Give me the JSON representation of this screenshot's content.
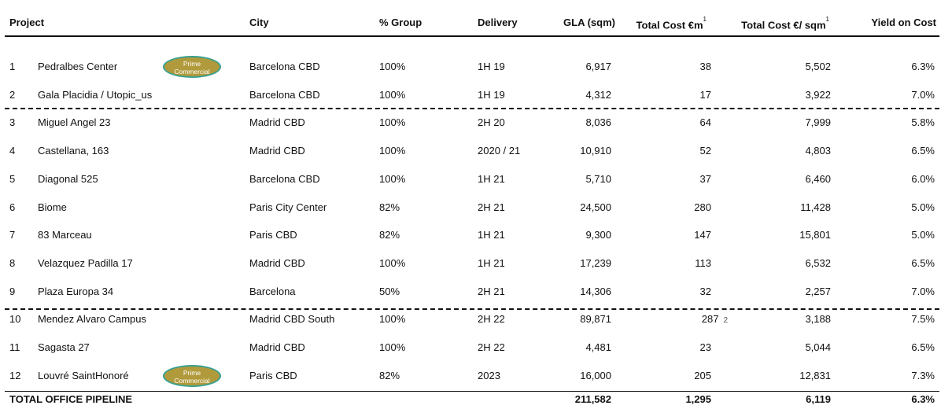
{
  "table": {
    "header": [
      "Project",
      "City",
      "% Group",
      "Delivery",
      "GLA (sqm)",
      "Total Cost €m",
      "Total Cost €/ sqm",
      "Yield on Cost"
    ],
    "header_notes": {
      "5": "1",
      "6": "1"
    },
    "rows": [
      {
        "cells": [
          "1",
          "Pedralbes Center",
          "Barcelona CBD",
          "100%",
          "1H 19",
          "6,917",
          "38",
          "5,502",
          "6.3%"
        ],
        "badge": [
          "Prime",
          "Commercial"
        ]
      },
      {
        "cells": [
          "2",
          "Gala Placidia / Utopic_us",
          "Barcelona CBD",
          "100%",
          "1H 19",
          "4,312",
          "17",
          "3,922",
          "7.0%"
        ]
      },
      {
        "cells": [
          "3",
          "Miguel Angel 23",
          "Madrid CBD",
          "100%",
          "2H 20",
          "8,036",
          "64",
          "7,999",
          "5.8%"
        ]
      },
      {
        "cells": [
          "4",
          "Castellana, 163",
          "Madrid CBD",
          "100%",
          "2020 / 21",
          "10,910",
          "52",
          "4,803",
          "6.5%"
        ]
      },
      {
        "cells": [
          "5",
          "Diagonal 525",
          "Barcelona CBD",
          "100%",
          "1H 21",
          "5,710",
          "37",
          "6,460",
          "6.0%"
        ]
      },
      {
        "cells": [
          "6",
          "Biome",
          "Paris City Center",
          "82%",
          "2H 21",
          "24,500",
          "280",
          "11,428",
          "5.0%"
        ]
      },
      {
        "cells": [
          "7",
          "83 Marceau",
          "Paris CBD",
          "82%",
          "1H 21",
          "9,300",
          "147",
          "15,801",
          "5.0%"
        ]
      },
      {
        "cells": [
          "8",
          "Velazquez Padilla 17",
          "Madrid CBD",
          "100%",
          "1H 21",
          "17,239",
          "113",
          "6,532",
          "6.5%"
        ]
      },
      {
        "cells": [
          "9",
          "Plaza Europa 34",
          "Barcelona",
          "50%",
          "2H 21",
          "14,306",
          "32",
          "2,257",
          "7.0%"
        ]
      },
      {
        "cells": [
          "10",
          "Mendez Alvaro Campus",
          "Madrid CBD South",
          "100%",
          "2H 22",
          "89,871",
          "287",
          "3,188",
          "7.5%"
        ],
        "cost_note": "2"
      },
      {
        "cells": [
          "11",
          "Sagasta 27",
          "Madrid CBD",
          "100%",
          "2H 22",
          "4,481",
          "23",
          "5,044",
          "6.5%"
        ]
      },
      {
        "cells": [
          "12",
          "Louvré SaintHonoré",
          "Paris CBD",
          "82%",
          "2023",
          "16,000",
          "205",
          "12,831",
          "7.3%"
        ],
        "badge": [
          "Prime",
          "Commercial"
        ]
      }
    ],
    "total": {
      "label": "TOTAL OFFICE PIPELINE",
      "cells": [
        "211,582",
        "1,295",
        "6,119",
        "6.3%"
      ]
    }
  }
}
